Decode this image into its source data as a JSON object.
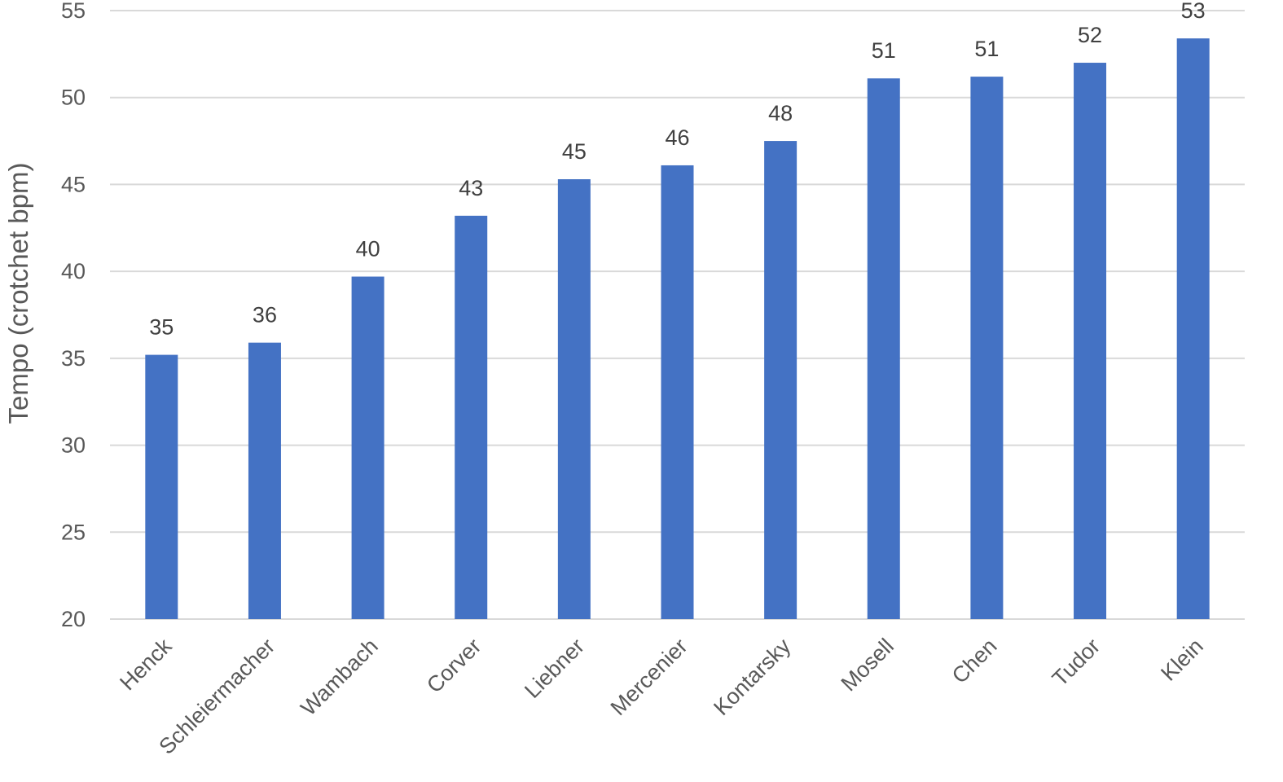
{
  "chart_data": {
    "type": "bar",
    "title": "",
    "xlabel": "",
    "ylabel": "Tempo (crotchet bpm)",
    "ylim": [
      20,
      55
    ],
    "yticks": [
      20,
      25,
      30,
      35,
      40,
      45,
      50,
      55
    ],
    "grid": true,
    "legend": "none",
    "bar_color": "#4472c4",
    "categories": [
      "Henck",
      "Schleiermacher",
      "Wambach",
      "Corver",
      "Liebner",
      "Mercenier",
      "Kontarsky",
      "Mosell",
      "Chen",
      "Tudor",
      "Klein"
    ],
    "values": [
      35.2,
      35.9,
      39.7,
      43.2,
      45.3,
      46.1,
      47.5,
      51.1,
      51.2,
      52.0,
      53.4
    ],
    "data_labels": [
      "35",
      "36",
      "40",
      "43",
      "45",
      "46",
      "48",
      "51",
      "51",
      "52",
      "53"
    ]
  }
}
